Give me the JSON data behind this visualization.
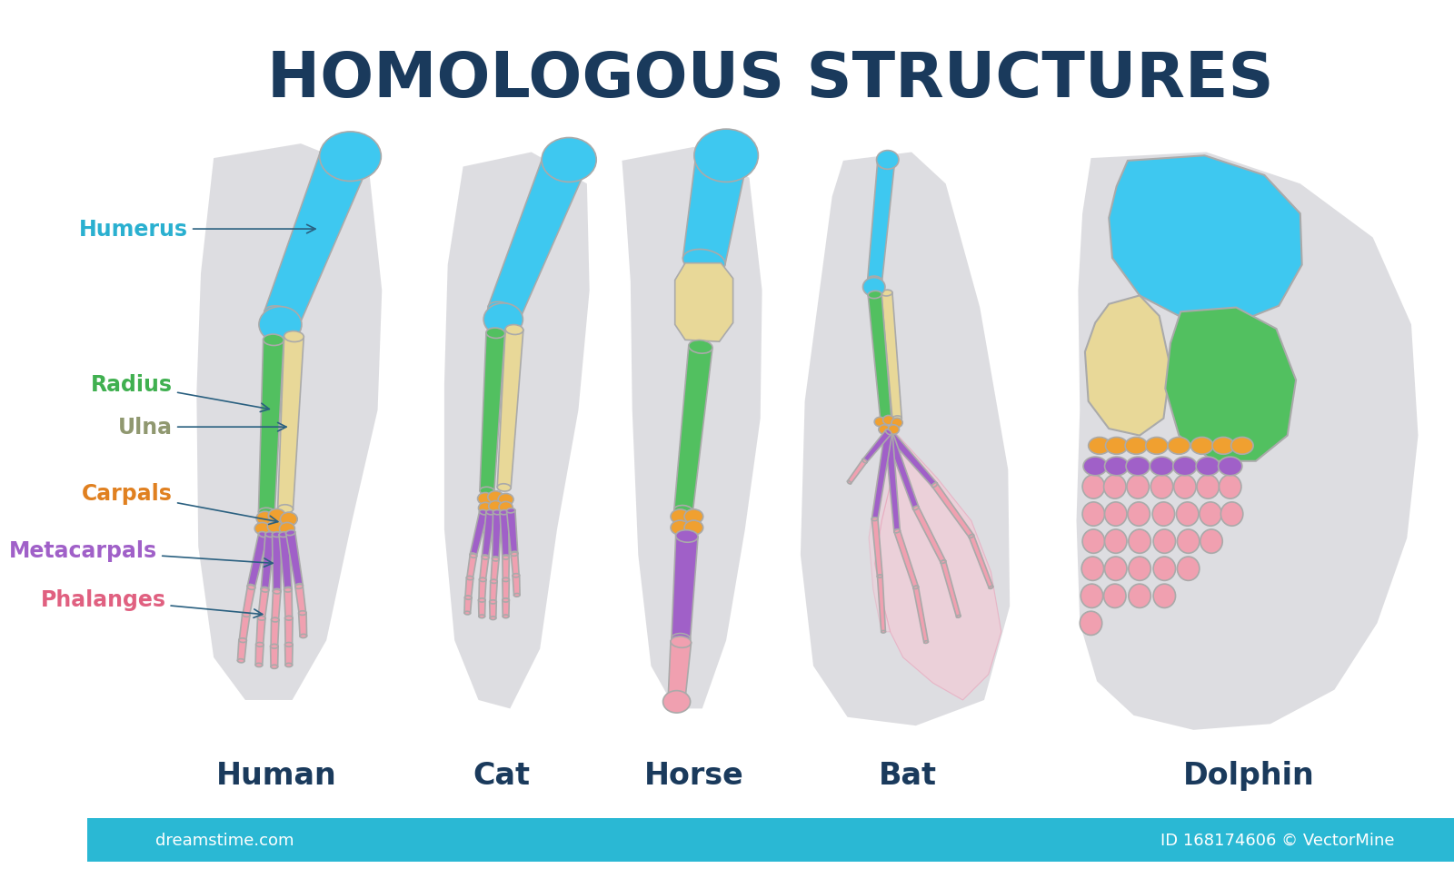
{
  "title": "HOMOLOGOUS STRUCTURES",
  "title_color": "#1a3a5c",
  "title_fontsize": 50,
  "bg_color": "#ffffff",
  "footer_color": "#2ab8d4",
  "species_label_color": "#1a3a5c",
  "species_fontsize": 24,
  "colors": {
    "humerus": "#3ec8f0",
    "radius": "#52c060",
    "ulna": "#e8d898",
    "carpals": "#f0a030",
    "metacarpals": "#a060c8",
    "phalanges": "#f0a0b0",
    "shadow": "#d8d8dc",
    "outline": "#aaaaaa"
  },
  "label_colors": {
    "Humerus": "#2ab0d0",
    "Radius": "#40b050",
    "Ulna": "#909870",
    "Carpals": "#e08020",
    "Metacarpals": "#a060c8",
    "Phalanges": "#e06080"
  },
  "label_fontsize": 17,
  "arrow_color": "#2a6080",
  "watermark": "dreamstime.com",
  "watermark2": "ID 168174606 © VectorMine"
}
